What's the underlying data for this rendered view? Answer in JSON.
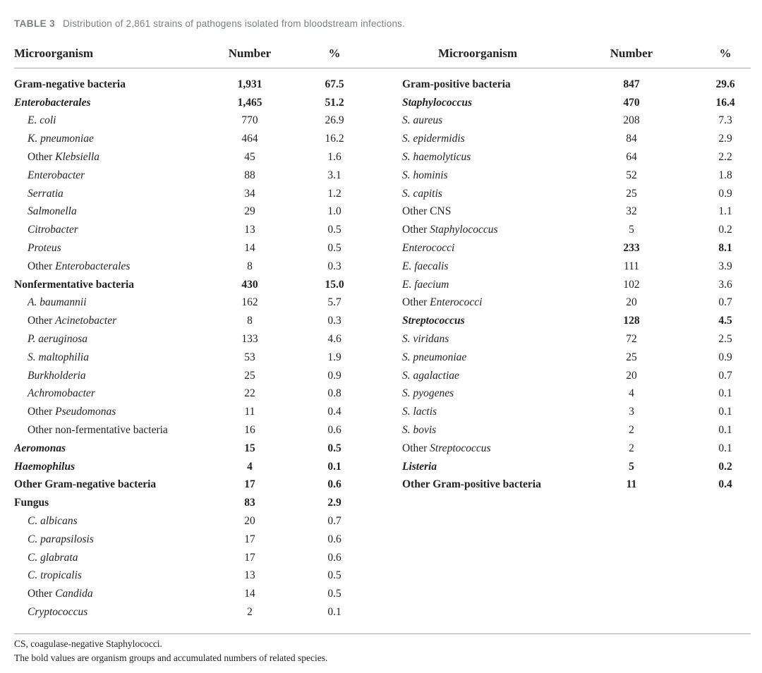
{
  "caption": {
    "label": "TABLE 3",
    "text": "Distribution of 2,861 strains of pathogens isolated from bloodstream infections."
  },
  "headers": {
    "microorganism": "Microorganism",
    "number": "Number",
    "percent": "%"
  },
  "colors": {
    "caption": "#7a817d",
    "text": "#222222",
    "rule": "#a8a8a8"
  },
  "left_rows": [
    {
      "segments": [
        {
          "t": "Gram-negative bacteria",
          "i": 0
        }
      ],
      "num": "1,931",
      "pct": "67.5",
      "bold": true,
      "indent": false
    },
    {
      "segments": [
        {
          "t": "Enterobacterales",
          "i": 1
        }
      ],
      "num": "1,465",
      "pct": "51.2",
      "bold": true,
      "indent": false
    },
    {
      "segments": [
        {
          "t": "E. coli",
          "i": 1
        }
      ],
      "num": "770",
      "pct": "26.9",
      "bold": false,
      "indent": true
    },
    {
      "segments": [
        {
          "t": "K. pneumoniae",
          "i": 1
        }
      ],
      "num": "464",
      "pct": "16.2",
      "bold": false,
      "indent": true
    },
    {
      "segments": [
        {
          "t": "Other ",
          "i": 0
        },
        {
          "t": "Klebsiella",
          "i": 1
        }
      ],
      "num": "45",
      "pct": "1.6",
      "bold": false,
      "indent": true
    },
    {
      "segments": [
        {
          "t": "Enterobacter",
          "i": 1
        }
      ],
      "num": "88",
      "pct": "3.1",
      "bold": false,
      "indent": true
    },
    {
      "segments": [
        {
          "t": "Serratia",
          "i": 1
        }
      ],
      "num": "34",
      "pct": "1.2",
      "bold": false,
      "indent": true
    },
    {
      "segments": [
        {
          "t": "Salmonella",
          "i": 1
        }
      ],
      "num": "29",
      "pct": "1.0",
      "bold": false,
      "indent": true
    },
    {
      "segments": [
        {
          "t": "Citrobacter",
          "i": 1
        }
      ],
      "num": "13",
      "pct": "0.5",
      "bold": false,
      "indent": true
    },
    {
      "segments": [
        {
          "t": "Proteus",
          "i": 1
        }
      ],
      "num": "14",
      "pct": "0.5",
      "bold": false,
      "indent": true
    },
    {
      "segments": [
        {
          "t": "Other ",
          "i": 0
        },
        {
          "t": "Enterobacterales",
          "i": 1
        }
      ],
      "num": "8",
      "pct": "0.3",
      "bold": false,
      "indent": true
    },
    {
      "segments": [
        {
          "t": "Nonfermentative bacteria",
          "i": 0
        }
      ],
      "num": "430",
      "pct": "15.0",
      "bold": true,
      "indent": false
    },
    {
      "segments": [
        {
          "t": "A. baumannii",
          "i": 1
        }
      ],
      "num": "162",
      "pct": "5.7",
      "bold": false,
      "indent": true
    },
    {
      "segments": [
        {
          "t": "Other ",
          "i": 0
        },
        {
          "t": "Acinetobacter",
          "i": 1
        }
      ],
      "num": "8",
      "pct": "0.3",
      "bold": false,
      "indent": true
    },
    {
      "segments": [
        {
          "t": "P. aeruginosa",
          "i": 1
        }
      ],
      "num": "133",
      "pct": "4.6",
      "bold": false,
      "indent": true
    },
    {
      "segments": [
        {
          "t": "S. maltophilia",
          "i": 1
        }
      ],
      "num": "53",
      "pct": "1.9",
      "bold": false,
      "indent": true
    },
    {
      "segments": [
        {
          "t": "Burkholderia",
          "i": 1
        }
      ],
      "num": "25",
      "pct": "0.9",
      "bold": false,
      "indent": true
    },
    {
      "segments": [
        {
          "t": "Achromobacter",
          "i": 1
        }
      ],
      "num": "22",
      "pct": "0.8",
      "bold": false,
      "indent": true
    },
    {
      "segments": [
        {
          "t": "Other ",
          "i": 0
        },
        {
          "t": "Pseudomonas",
          "i": 1
        }
      ],
      "num": "11",
      "pct": "0.4",
      "bold": false,
      "indent": true
    },
    {
      "segments": [
        {
          "t": "Other non-fermentative bacteria",
          "i": 0
        }
      ],
      "num": "16",
      "pct": "0.6",
      "bold": false,
      "indent": true
    },
    {
      "segments": [
        {
          "t": "Aeromonas",
          "i": 1
        }
      ],
      "num": "15",
      "pct": "0.5",
      "bold": true,
      "indent": false
    },
    {
      "segments": [
        {
          "t": "Haemophilus",
          "i": 1
        }
      ],
      "num": "4",
      "pct": "0.1",
      "bold": true,
      "indent": false
    },
    {
      "segments": [
        {
          "t": "Other Gram-negative bacteria",
          "i": 0
        }
      ],
      "num": "17",
      "pct": "0.6",
      "bold": true,
      "indent": false
    },
    {
      "segments": [
        {
          "t": "Fungus",
          "i": 0
        }
      ],
      "num": "83",
      "pct": "2.9",
      "bold": true,
      "indent": false
    },
    {
      "segments": [
        {
          "t": "C. albicans",
          "i": 1
        }
      ],
      "num": "20",
      "pct": "0.7",
      "bold": false,
      "indent": true
    },
    {
      "segments": [
        {
          "t": "C. parapsilosis",
          "i": 1
        }
      ],
      "num": "17",
      "pct": "0.6",
      "bold": false,
      "indent": true
    },
    {
      "segments": [
        {
          "t": "C. glabrata",
          "i": 1
        }
      ],
      "num": "17",
      "pct": "0.6",
      "bold": false,
      "indent": true
    },
    {
      "segments": [
        {
          "t": "C. tropicalis",
          "i": 1
        }
      ],
      "num": "13",
      "pct": "0.5",
      "bold": false,
      "indent": true
    },
    {
      "segments": [
        {
          "t": "Other ",
          "i": 0
        },
        {
          "t": "Candida",
          "i": 1
        }
      ],
      "num": "14",
      "pct": "0.5",
      "bold": false,
      "indent": true
    },
    {
      "segments": [
        {
          "t": "Cryptococcus",
          "i": 1
        }
      ],
      "num": "2",
      "pct": "0.1",
      "bold": false,
      "indent": true
    }
  ],
  "right_rows": [
    {
      "segments": [
        {
          "t": "Gram-positive bacteria",
          "i": 0
        }
      ],
      "num": "847",
      "pct": "29.6",
      "bold": true,
      "indent": false
    },
    {
      "segments": [
        {
          "t": "Staphylococcus",
          "i": 1
        }
      ],
      "num": "470",
      "pct": "16.4",
      "bold": true,
      "indent": false
    },
    {
      "segments": [
        {
          "t": "S. aureus",
          "i": 1
        }
      ],
      "num": "208",
      "pct": "7.3",
      "bold": false,
      "indent": false
    },
    {
      "segments": [
        {
          "t": "S. epidermidis",
          "i": 1
        }
      ],
      "num": "84",
      "pct": "2.9",
      "bold": false,
      "indent": false
    },
    {
      "segments": [
        {
          "t": "S. haemolyticus",
          "i": 1
        }
      ],
      "num": "64",
      "pct": "2.2",
      "bold": false,
      "indent": false
    },
    {
      "segments": [
        {
          "t": "S. hominis",
          "i": 1
        }
      ],
      "num": "52",
      "pct": "1.8",
      "bold": false,
      "indent": false
    },
    {
      "segments": [
        {
          "t": "S. capitis",
          "i": 1
        }
      ],
      "num": "25",
      "pct": "0.9",
      "bold": false,
      "indent": false
    },
    {
      "segments": [
        {
          "t": "Other CNS",
          "i": 0
        }
      ],
      "num": "32",
      "pct": "1.1",
      "bold": false,
      "indent": false
    },
    {
      "segments": [
        {
          "t": "Other ",
          "i": 0
        },
        {
          "t": "Staphylococcus",
          "i": 1
        }
      ],
      "num": "5",
      "pct": "0.2",
      "bold": false,
      "indent": false
    },
    {
      "segments": [
        {
          "t": "Enterococci",
          "i": 1
        }
      ],
      "num": "233",
      "pct": "8.1",
      "bold": false,
      "boldnum": true,
      "indent": false
    },
    {
      "segments": [
        {
          "t": "E. faecalis",
          "i": 1
        }
      ],
      "num": "111",
      "pct": "3.9",
      "bold": false,
      "indent": false
    },
    {
      "segments": [
        {
          "t": "E. faecium",
          "i": 1
        }
      ],
      "num": "102",
      "pct": "3.6",
      "bold": false,
      "indent": false
    },
    {
      "segments": [
        {
          "t": "Other ",
          "i": 0
        },
        {
          "t": "Enterococci",
          "i": 1
        }
      ],
      "num": "20",
      "pct": "0.7",
      "bold": false,
      "indent": false
    },
    {
      "segments": [
        {
          "t": "Streptococcus",
          "i": 1
        }
      ],
      "num": "128",
      "pct": "4.5",
      "bold": true,
      "indent": false
    },
    {
      "segments": [
        {
          "t": "S. viridans",
          "i": 1
        }
      ],
      "num": "72",
      "pct": "2.5",
      "bold": false,
      "indent": false
    },
    {
      "segments": [
        {
          "t": "S. pneumoniae",
          "i": 1
        }
      ],
      "num": "25",
      "pct": "0.9",
      "bold": false,
      "indent": false
    },
    {
      "segments": [
        {
          "t": "S. agalactiae",
          "i": 1
        }
      ],
      "num": "20",
      "pct": "0.7",
      "bold": false,
      "indent": false
    },
    {
      "segments": [
        {
          "t": "S. pyogenes",
          "i": 1
        }
      ],
      "num": "4",
      "pct": "0.1",
      "bold": false,
      "indent": false
    },
    {
      "segments": [
        {
          "t": "S. lactis",
          "i": 1
        }
      ],
      "num": "3",
      "pct": "0.1",
      "bold": false,
      "indent": false
    },
    {
      "segments": [
        {
          "t": "S. bovis",
          "i": 1
        }
      ],
      "num": "2",
      "pct": "0.1",
      "bold": false,
      "indent": false
    },
    {
      "segments": [
        {
          "t": "Other ",
          "i": 0
        },
        {
          "t": "Streptococcus",
          "i": 1
        }
      ],
      "num": "2",
      "pct": "0.1",
      "bold": false,
      "indent": false
    },
    {
      "segments": [
        {
          "t": "Listeria",
          "i": 1
        }
      ],
      "num": "5",
      "pct": "0.2",
      "bold": true,
      "indent": false
    },
    {
      "segments": [
        {
          "t": "Other Gram-positive bacteria",
          "i": 0
        }
      ],
      "num": "11",
      "pct": "0.4",
      "bold": true,
      "indent": false
    }
  ],
  "footnotes": [
    "CS, coagulase-negative Staphylococci.",
    "The bold values are organism groups and accumulated numbers of related species."
  ]
}
